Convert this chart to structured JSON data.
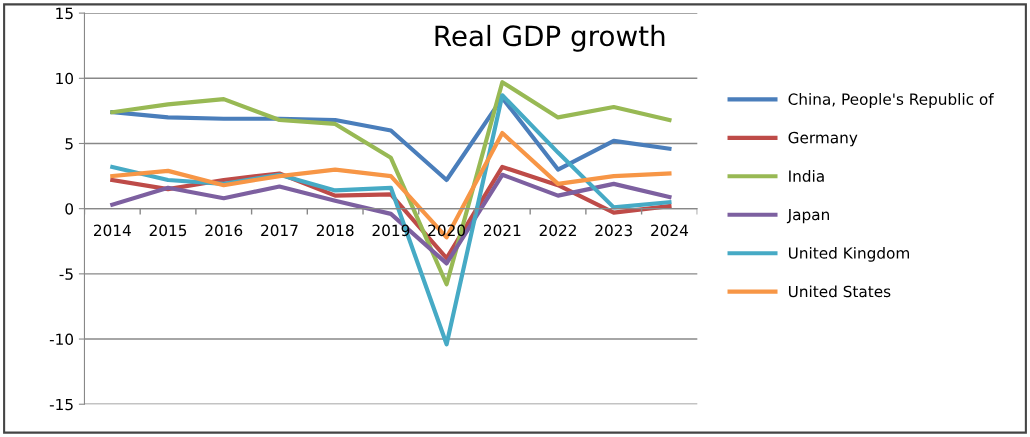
{
  "chart_data": {
    "type": "line",
    "title": "Real GDP growth",
    "categories": [
      "2014",
      "2015",
      "2016",
      "2017",
      "2018",
      "2019",
      "2020",
      "2021",
      "2022",
      "2023",
      "2024"
    ],
    "series": [
      {
        "name": "China, People's Republic of",
        "color": "#4a7ebb",
        "values": [
          7.4,
          7.0,
          6.9,
          6.9,
          6.8,
          6.0,
          2.2,
          8.5,
          3.0,
          5.2,
          4.6
        ]
      },
      {
        "name": "Germany",
        "color": "#be4b48",
        "values": [
          2.2,
          1.5,
          2.2,
          2.7,
          1.0,
          1.1,
          -3.8,
          3.2,
          1.8,
          -0.3,
          0.2
        ]
      },
      {
        "name": "India",
        "color": "#98b954",
        "values": [
          7.4,
          8.0,
          8.4,
          6.8,
          6.5,
          3.9,
          -5.8,
          9.7,
          7.0,
          7.8,
          6.8
        ]
      },
      {
        "name": "Japan",
        "color": "#7d60a0",
        "values": [
          0.3,
          1.6,
          0.8,
          1.7,
          0.6,
          -0.4,
          -4.2,
          2.6,
          1.0,
          1.9,
          0.9
        ]
      },
      {
        "name": "United Kingdom",
        "color": "#46aac5",
        "values": [
          3.2,
          2.2,
          1.9,
          2.6,
          1.4,
          1.6,
          -10.4,
          8.7,
          4.3,
          0.1,
          0.5
        ]
      },
      {
        "name": "United States",
        "color": "#f79646",
        "values": [
          2.5,
          2.9,
          1.8,
          2.5,
          3.0,
          2.5,
          -2.2,
          5.8,
          1.9,
          2.5,
          2.7
        ]
      }
    ],
    "ylim": [
      -15,
      15
    ],
    "yticks": [
      -15,
      -10,
      -5,
      0,
      5,
      10,
      15
    ],
    "grid": "y",
    "legend": "right",
    "marker": "none",
    "line_style": "solid"
  }
}
